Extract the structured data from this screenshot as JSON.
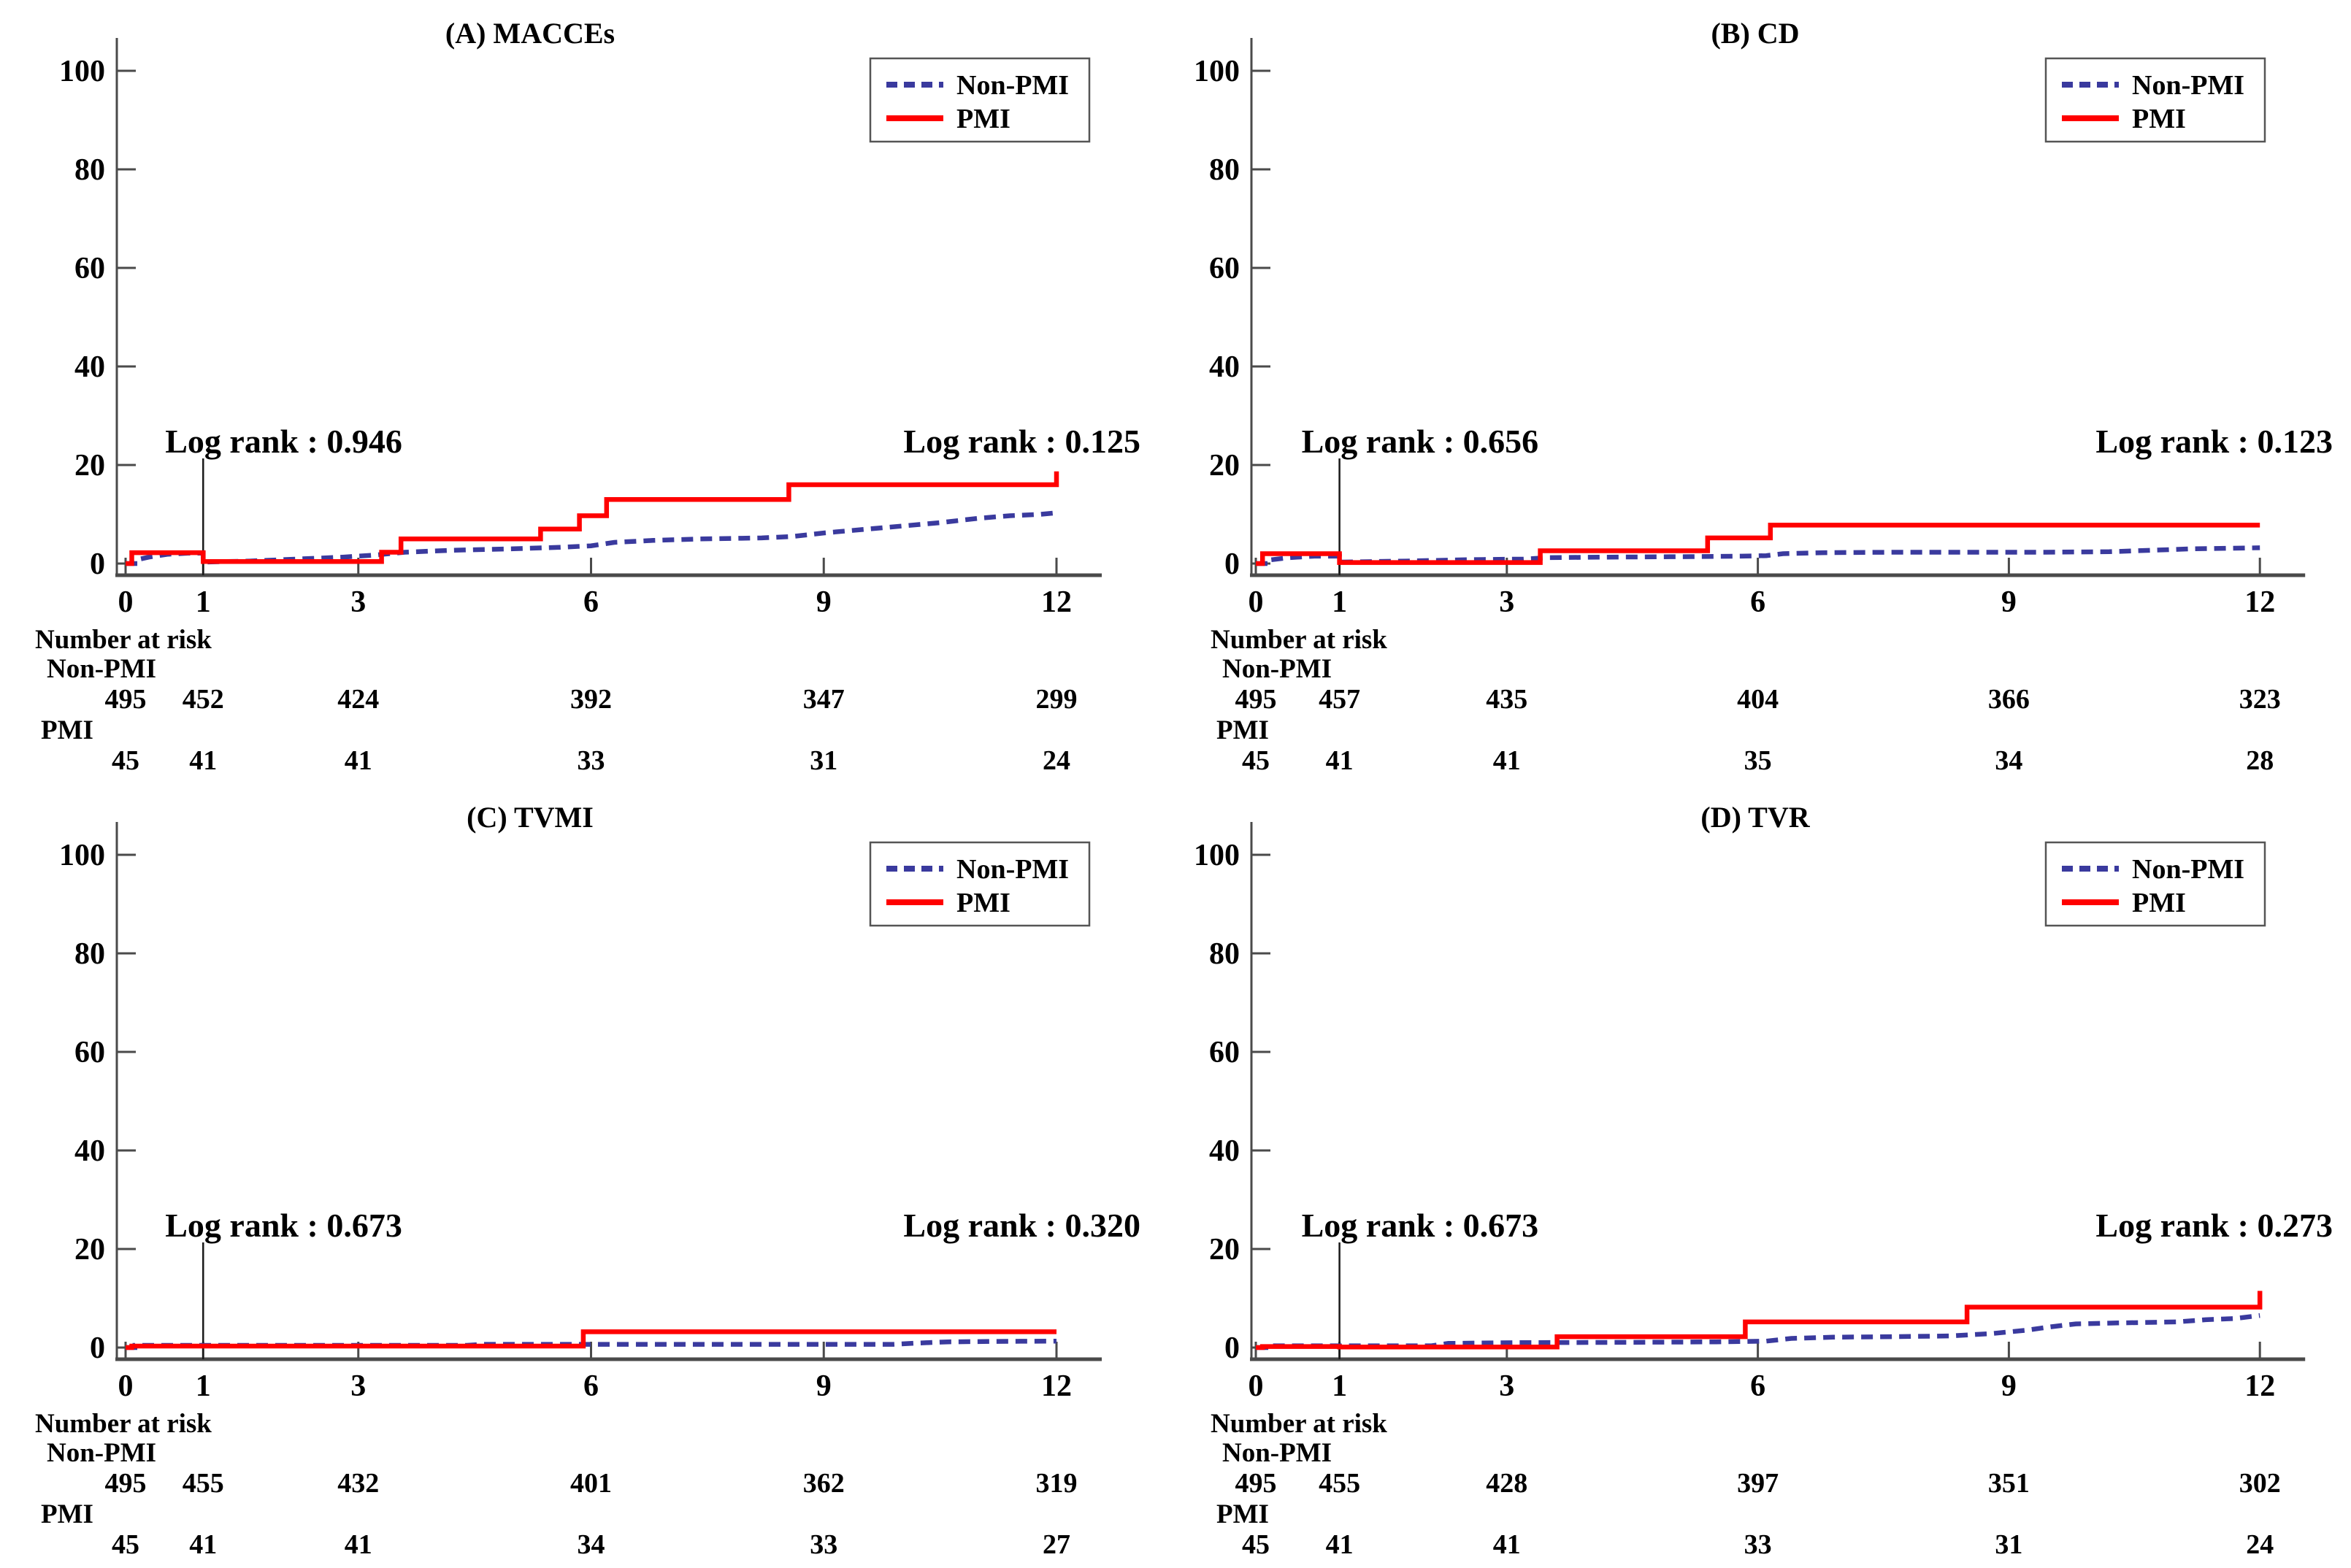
{
  "figure": {
    "background": "#ffffff"
  },
  "colors": {
    "non_pmi": "#3a3a9e",
    "pmi": "#ff0000",
    "axis": "#4a4a4a",
    "text": "#000000",
    "landmark_line": "#1a1a1a",
    "legend_border": "#555555"
  },
  "legend": {
    "non_pmi_label": "Non-PMI",
    "pmi_label": "PMI"
  },
  "chart_data": [
    {
      "id": "A",
      "type": "line",
      "title": "(A) MACCEs",
      "xlabel": "",
      "ylabel": "",
      "x_ticks": [
        0,
        1,
        3,
        6,
        9,
        12
      ],
      "y_ticks": [
        0,
        20,
        40,
        60,
        80,
        100
      ],
      "xlim": [
        0,
        12
      ],
      "ylim": [
        0,
        100
      ],
      "landmark_x": 1,
      "log_rank_left": "Log rank : 0.946",
      "log_rank_right": "Log rank : 0.125",
      "series": [
        {
          "name": "Non-PMI",
          "style": "dashed",
          "points": [
            [
              0,
              0
            ],
            [
              0.12,
              0
            ],
            [
              0.12,
              0.7
            ],
            [
              0.3,
              1.3
            ],
            [
              0.55,
              1.9
            ],
            [
              0.8,
              2.1
            ],
            [
              1,
              2.1
            ],
            [
              1,
              0.3
            ],
            [
              1.6,
              0.5
            ],
            [
              2.2,
              0.9
            ],
            [
              2.8,
              1.3
            ],
            [
              3.2,
              1.7
            ],
            [
              3.6,
              2.3
            ],
            [
              4.2,
              2.7
            ],
            [
              5,
              3
            ],
            [
              5.6,
              3.3
            ],
            [
              6,
              3.6
            ],
            [
              6.3,
              4.3
            ],
            [
              6.8,
              4.7
            ],
            [
              7.4,
              5
            ],
            [
              8.2,
              5.2
            ],
            [
              8.6,
              5.5
            ],
            [
              9,
              6.2
            ],
            [
              9.5,
              6.9
            ],
            [
              10,
              7.6
            ],
            [
              10.5,
              8.3
            ],
            [
              11,
              9.2
            ],
            [
              11.4,
              9.7
            ],
            [
              11.8,
              10
            ],
            [
              12,
              10.3
            ]
          ]
        },
        {
          "name": "PMI",
          "style": "solid",
          "points": [
            [
              0,
              0
            ],
            [
              0.08,
              0
            ],
            [
              0.08,
              2.2
            ],
            [
              1,
              2.2
            ],
            [
              1,
              0.4
            ],
            [
              3.3,
              0.4
            ],
            [
              3.3,
              2.3
            ],
            [
              3.55,
              2.3
            ],
            [
              3.55,
              5
            ],
            [
              5.35,
              5
            ],
            [
              5.35,
              7
            ],
            [
              5.85,
              7
            ],
            [
              5.85,
              9.7
            ],
            [
              6.2,
              9.7
            ],
            [
              6.2,
              13
            ],
            [
              8.55,
              13
            ],
            [
              8.55,
              16
            ],
            [
              12,
              16
            ],
            [
              12,
              18.7
            ]
          ]
        }
      ],
      "risk_table": {
        "header": "Number at risk",
        "rows": [
          {
            "label": "Non-PMI",
            "values": [
              "495",
              "452",
              "424",
              "392",
              "347",
              "299"
            ]
          },
          {
            "label": "PMI",
            "values": [
              "45",
              "41",
              "41",
              "33",
              "31",
              "24"
            ]
          }
        ]
      }
    },
    {
      "id": "B",
      "type": "line",
      "title": "(B) CD",
      "xlabel": "",
      "ylabel": "",
      "x_ticks": [
        0,
        1,
        3,
        6,
        9,
        12
      ],
      "y_ticks": [
        0,
        20,
        40,
        60,
        80,
        100
      ],
      "xlim": [
        0,
        12
      ],
      "ylim": [
        0,
        100
      ],
      "landmark_x": 1,
      "log_rank_left": "Log rank : 0.656",
      "log_rank_right": "Log rank : 0.123",
      "series": [
        {
          "name": "Non-PMI",
          "style": "dashed",
          "points": [
            [
              0,
              0
            ],
            [
              0.15,
              0
            ],
            [
              0.15,
              0.7
            ],
            [
              0.4,
              1.2
            ],
            [
              0.7,
              1.5
            ],
            [
              1,
              1.5
            ],
            [
              1,
              0.3
            ],
            [
              1.8,
              0.5
            ],
            [
              2.6,
              0.8
            ],
            [
              3.2,
              0.9
            ],
            [
              3.5,
              1.2
            ],
            [
              4.2,
              1.3
            ],
            [
              5.2,
              1.4
            ],
            [
              5.8,
              1.5
            ],
            [
              6.1,
              1.6
            ],
            [
              6.3,
              2
            ],
            [
              6.8,
              2.2
            ],
            [
              7.6,
              2.3
            ],
            [
              9.4,
              2.3
            ],
            [
              10.2,
              2.4
            ],
            [
              10.7,
              2.7
            ],
            [
              11.2,
              3
            ],
            [
              12,
              3.2
            ]
          ]
        },
        {
          "name": "PMI",
          "style": "solid",
          "points": [
            [
              0,
              0
            ],
            [
              0.08,
              0
            ],
            [
              0.08,
              2
            ],
            [
              1,
              2
            ],
            [
              1,
              0.2
            ],
            [
              3.4,
              0.2
            ],
            [
              3.4,
              2.6
            ],
            [
              5.4,
              2.6
            ],
            [
              5.4,
              5.2
            ],
            [
              6.15,
              5.2
            ],
            [
              6.15,
              7.8
            ],
            [
              12,
              7.8
            ]
          ]
        }
      ],
      "risk_table": {
        "header": "Number at risk",
        "rows": [
          {
            "label": "Non-PMI",
            "values": [
              "495",
              "457",
              "435",
              "404",
              "366",
              "323"
            ]
          },
          {
            "label": "PMI",
            "values": [
              "45",
              "41",
              "41",
              "35",
              "34",
              "28"
            ]
          }
        ]
      }
    },
    {
      "id": "C",
      "type": "line",
      "title": "(C) TVMI",
      "xlabel": "",
      "ylabel": "",
      "x_ticks": [
        0,
        1,
        3,
        6,
        9,
        12
      ],
      "y_ticks": [
        0,
        20,
        40,
        60,
        80,
        100
      ],
      "xlim": [
        0,
        12
      ],
      "ylim": [
        0,
        100
      ],
      "landmark_x": 1,
      "log_rank_left": "Log rank : 0.673",
      "log_rank_right": "Log rank : 0.320",
      "series": [
        {
          "name": "Non-PMI",
          "style": "dashed",
          "points": [
            [
              0,
              0
            ],
            [
              0.12,
              0
            ],
            [
              0.12,
              0.45
            ],
            [
              4.4,
              0.45
            ],
            [
              4.6,
              0.65
            ],
            [
              9.9,
              0.65
            ],
            [
              10.2,
              0.9
            ],
            [
              10.6,
              1.15
            ],
            [
              11.2,
              1.25
            ],
            [
              12,
              1.3
            ]
          ]
        },
        {
          "name": "PMI",
          "style": "solid",
          "points": [
            [
              0,
              0
            ],
            [
              0.08,
              0
            ],
            [
              0.08,
              0.3
            ],
            [
              5.9,
              0.3
            ],
            [
              5.9,
              3.2
            ],
            [
              12,
              3.2
            ]
          ]
        }
      ],
      "risk_table": {
        "header": "Number at risk",
        "rows": [
          {
            "label": "Non-PMI",
            "values": [
              "495",
              "455",
              "432",
              "401",
              "362",
              "319"
            ]
          },
          {
            "label": "PMI",
            "values": [
              "45",
              "41",
              "41",
              "34",
              "33",
              "27"
            ]
          }
        ]
      }
    },
    {
      "id": "D",
      "type": "line",
      "title": "(D) TVR",
      "xlabel": "",
      "ylabel": "",
      "x_ticks": [
        0,
        1,
        3,
        6,
        9,
        12
      ],
      "y_ticks": [
        0,
        20,
        40,
        60,
        80,
        100
      ],
      "xlim": [
        0,
        12
      ],
      "ylim": [
        0,
        100
      ],
      "landmark_x": 1,
      "log_rank_left": "Log rank : 0.673",
      "log_rank_right": "Log rank : 0.273",
      "series": [
        {
          "name": "Non-PMI",
          "style": "dashed",
          "points": [
            [
              0,
              0
            ],
            [
              0.12,
              0
            ],
            [
              0.12,
              0.35
            ],
            [
              2.1,
              0.35
            ],
            [
              2.3,
              0.85
            ],
            [
              3.1,
              1
            ],
            [
              4.4,
              1.05
            ],
            [
              5.5,
              1.15
            ],
            [
              6.1,
              1.3
            ],
            [
              6.4,
              1.85
            ],
            [
              6.9,
              2.1
            ],
            [
              7.6,
              2.2
            ],
            [
              8.3,
              2.35
            ],
            [
              8.8,
              2.85
            ],
            [
              9.2,
              3.5
            ],
            [
              9.5,
              4.2
            ],
            [
              9.8,
              4.8
            ],
            [
              10.3,
              5
            ],
            [
              11,
              5.2
            ],
            [
              11.35,
              5.65
            ],
            [
              11.7,
              5.9
            ],
            [
              12,
              6.5
            ]
          ]
        },
        {
          "name": "PMI",
          "style": "solid",
          "points": [
            [
              0,
              0
            ],
            [
              0.08,
              0
            ],
            [
              0.08,
              0.2
            ],
            [
              1,
              0.2
            ],
            [
              1,
              0.1
            ],
            [
              3.6,
              0.1
            ],
            [
              3.6,
              2.2
            ],
            [
              5.85,
              2.2
            ],
            [
              5.85,
              5.2
            ],
            [
              8.5,
              5.2
            ],
            [
              8.5,
              8.2
            ],
            [
              12,
              8.2
            ],
            [
              12,
              11.5
            ]
          ]
        }
      ],
      "risk_table": {
        "header": "Number at risk",
        "rows": [
          {
            "label": "Non-PMI",
            "values": [
              "495",
              "455",
              "428",
              "397",
              "351",
              "302"
            ]
          },
          {
            "label": "PMI",
            "values": [
              "45",
              "41",
              "41",
              "33",
              "31",
              "24"
            ]
          }
        ]
      }
    }
  ]
}
